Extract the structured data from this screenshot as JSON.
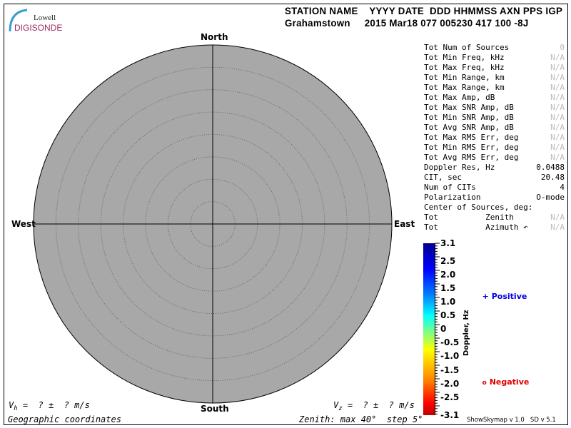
{
  "logo": {
    "line1": "Lowell",
    "line2": "DIGISONDE"
  },
  "header": {
    "row1": "STATION NAME    YYYY DATE  DDD HHMMSS AXN PPS IGP",
    "row2": "Grahamstown     2015 Mar18 077 005230 417 100 -8J"
  },
  "directions": {
    "north": "North",
    "south": "South",
    "east": "East",
    "west": "West"
  },
  "stats": [
    {
      "label": "Tot Num of Sources",
      "value": "0",
      "na": true
    },
    {
      "label": "Tot Min Freq, kHz",
      "value": "N/A",
      "na": true
    },
    {
      "label": "Tot Max Freq, kHz",
      "value": "N/A",
      "na": true
    },
    {
      "label": "Tot Min Range, km",
      "value": "N/A",
      "na": true
    },
    {
      "label": "Tot Max Range, km",
      "value": "N/A",
      "na": true
    },
    {
      "label": "Tot Max Amp, dB",
      "value": "N/A",
      "na": true
    },
    {
      "label": "Tot Max SNR Amp, dB",
      "value": "N/A",
      "na": true
    },
    {
      "label": "Tot Min SNR Amp, dB",
      "value": "N/A",
      "na": true
    },
    {
      "label": "Tot Avg SNR Amp, dB",
      "value": "N/A",
      "na": true
    },
    {
      "label": "Tot Max RMS Err, deg",
      "value": "N/A",
      "na": true
    },
    {
      "label": "Tot Min RMS Err, deg",
      "value": "N/A",
      "na": true
    },
    {
      "label": "Tot Avg RMS Err, deg",
      "value": "N/A",
      "na": true
    },
    {
      "label": "Doppler Res, Hz",
      "value": "0.0488",
      "na": false
    },
    {
      "label": "CIT, sec",
      "value": "20.48",
      "na": false
    },
    {
      "label": "Num of CITs",
      "value": "4",
      "na": false
    },
    {
      "label": "Polarization",
      "value": "O-mode",
      "na": false
    },
    {
      "label": "Center of Sources, deg:",
      "value": "",
      "na": false
    },
    {
      "label": "Tot          Zenith",
      "value": "N/A",
      "na": true
    },
    {
      "label": "Tot          Azimuth ↶",
      "value": "N/A",
      "na": true
    }
  ],
  "colorbar": {
    "title": "Doppler, Hz",
    "ticks": [
      "3.1",
      "2.5",
      "2.0",
      "1.5",
      "1.0",
      "0.5",
      "0",
      "-0.5",
      "-1.0",
      "-1.5",
      "-2.0",
      "-2.5",
      "-3.1"
    ]
  },
  "legend": {
    "positive": {
      "symbol": "+",
      "label": "Positive",
      "color": "#0000dd"
    },
    "negative": {
      "symbol": "o",
      "label": "Negative",
      "color": "#dd0000"
    }
  },
  "footer": {
    "vh_sym": "V",
    "vh_sub": "h",
    "vh_text": " =  ? ±  ? m/s",
    "vz_sym": "V",
    "vz_sub": "z",
    "vz_text": " =  ? ±  ? m/s",
    "coords": "Geographic coordinates",
    "zenith": "Zenith: max 40°  step 5°",
    "version": "ShowSkymap v 1.0   SD v 5.1"
  },
  "skymap": {
    "zenith_max_deg": 40,
    "zenith_step_deg": 5,
    "fill": "#a8a8a8"
  }
}
